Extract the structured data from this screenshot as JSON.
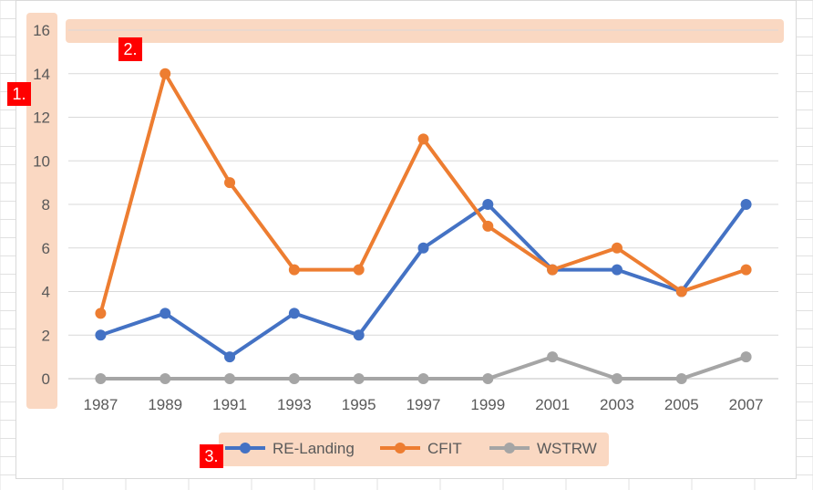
{
  "chart_data": {
    "type": "line",
    "categories": [
      "1987",
      "1989",
      "1991",
      "1993",
      "1995",
      "1997",
      "1999",
      "2001",
      "2003",
      "2005",
      "2007"
    ],
    "series": [
      {
        "name": "RE-Landing",
        "color": "#4472c4",
        "values": [
          2,
          3,
          1,
          3,
          2,
          6,
          8,
          5,
          5,
          4,
          8
        ]
      },
      {
        "name": "CFIT",
        "color": "#ed7d31",
        "values": [
          3,
          14,
          9,
          5,
          5,
          11,
          7,
          5,
          6,
          4,
          5
        ]
      },
      {
        "name": "WSTRW",
        "color": "#a5a5a5",
        "values": [
          0,
          0,
          0,
          0,
          0,
          0,
          0,
          1,
          0,
          0,
          1
        ]
      }
    ],
    "ylim": [
      0,
      16
    ],
    "yticks": [
      "0",
      "2",
      "4",
      "6",
      "8",
      "10",
      "12",
      "14",
      "16"
    ],
    "grid": true,
    "legend_position": "bottom",
    "highlight_color": "#f8cbad"
  },
  "callouts": [
    "1.",
    "2.",
    "3."
  ]
}
